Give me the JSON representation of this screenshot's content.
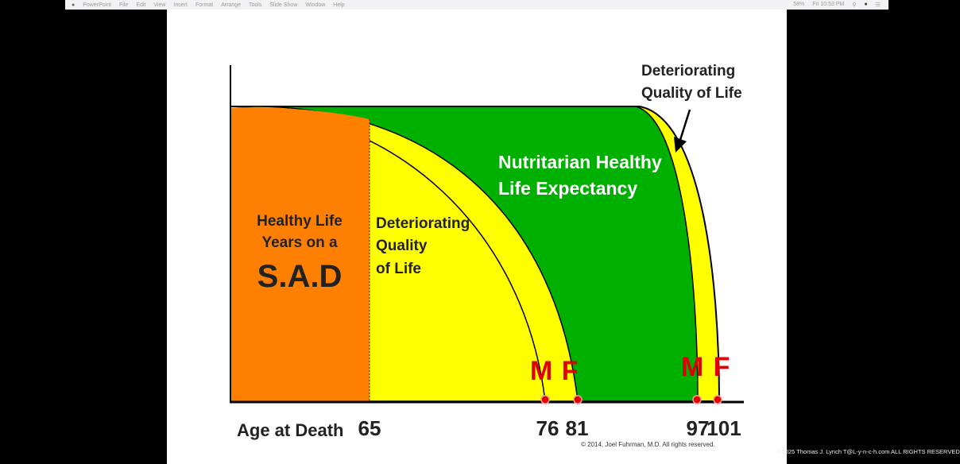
{
  "menubar": {
    "apple_icon": "apple-icon",
    "items": [
      "PowerPoint",
      "File",
      "Edit",
      "View",
      "Insert",
      "Format",
      "Arrange",
      "Tools",
      "Slide Show",
      "Window",
      "Help"
    ],
    "status": [
      "58%",
      "Fri 10:53 PM"
    ]
  },
  "slide": {
    "sad_label": [
      "Healthy Life",
      "Years on a",
      "S.A.D"
    ],
    "sad_deteriorating": [
      "Deteriorating",
      "Quality",
      "of Life"
    ],
    "nutritarian_label": [
      "Nutritarian Healthy",
      "Life Expectancy"
    ],
    "nutritarian_deteriorating": [
      "Deteriorating",
      "Quality of Life"
    ],
    "x_axis_label": "Age at Death",
    "ticks": [
      "65",
      "76",
      "81",
      "97",
      "101"
    ],
    "markers": [
      "M",
      "F",
      "M",
      "F"
    ],
    "copyright": "© 2014, Joel Fuhrman, M.D.  All rights reserved.",
    "colors": {
      "orange": "#ff8000",
      "yellow": "#ffff00",
      "green": "#00b000",
      "red": "#e00000"
    }
  },
  "watermark": "©2025 Thomas J. Lynch T@L-y-n-c-h.com ALL RIGHTS RESERVED"
}
